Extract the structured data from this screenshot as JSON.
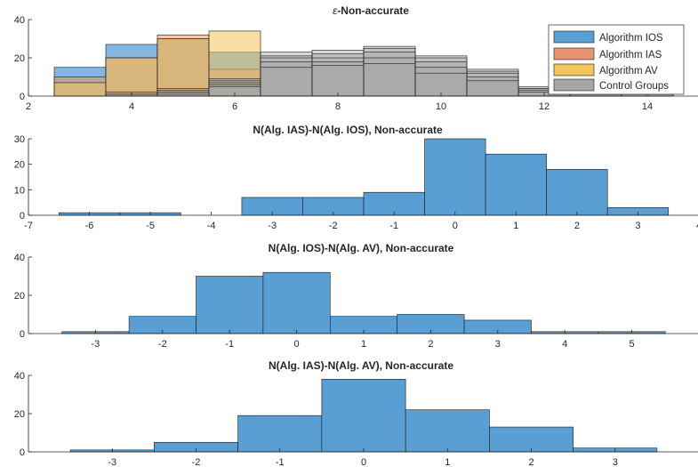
{
  "figure": {
    "colors": {
      "ios": "#5a9fd4",
      "ias": "#e8956f",
      "av": "#f2c55c",
      "ctrl": "#a6a6a6"
    }
  },
  "chart_data": [
    {
      "type": "bar",
      "subtype": "overlaid-histogram",
      "title": "ε-Non-accurate",
      "title_prefix": "ε",
      "title_suffix": "-Non-accurate",
      "xlim": [
        2,
        15
      ],
      "ylim": [
        0,
        40
      ],
      "xticks": [
        2,
        4,
        6,
        8,
        10,
        12,
        14
      ],
      "yticks": [
        0,
        20,
        40
      ],
      "legend": {
        "position": "top-right",
        "entries": [
          "Algorithm IOS",
          "Algorithm IAS",
          "Algorithm AV",
          "Control Groups"
        ]
      },
      "bin_edges": [
        2.5,
        3.5,
        4.5,
        5.5,
        6.5,
        7.5,
        8.5,
        9.5,
        10.5,
        11.5,
        12.5,
        13.5,
        14.5
      ],
      "series": [
        {
          "name": "Algorithm IOS",
          "color_key": "ios",
          "alpha": 0.75,
          "values": [
            15,
            27,
            30,
            23,
            0,
            0,
            0,
            0,
            0,
            0,
            0,
            0
          ]
        },
        {
          "name": "Algorithm IAS",
          "color_key": "ias",
          "alpha": 0.55,
          "values": [
            10,
            20,
            32,
            14,
            0,
            0,
            0,
            0,
            0,
            0,
            0,
            0
          ]
        },
        {
          "name": "Algorithm AV",
          "color_key": "av",
          "alpha": 0.55,
          "values": [
            7,
            20,
            30,
            34,
            0,
            0,
            0,
            0,
            0,
            0,
            0,
            0
          ]
        },
        {
          "name": "Control Groups",
          "color_key": "ctrl",
          "alpha": 0.45,
          "values": [
            0,
            1,
            4,
            9,
            23,
            24,
            26,
            21,
            14,
            5,
            2,
            1
          ]
        },
        {
          "name": "",
          "color_key": "ctrl",
          "alpha": 0.45,
          "values": [
            0,
            2,
            3,
            8,
            21,
            22,
            25,
            20,
            13,
            4,
            2,
            1
          ]
        },
        {
          "name": "",
          "color_key": "ctrl",
          "alpha": 0.45,
          "values": [
            0,
            1,
            2,
            7,
            20,
            20,
            23,
            18,
            12,
            4,
            1,
            1
          ]
        },
        {
          "name": "",
          "color_key": "ctrl",
          "alpha": 0.45,
          "values": [
            0,
            1,
            2,
            6,
            18,
            18,
            20,
            15,
            10,
            3,
            1,
            0
          ]
        },
        {
          "name": "",
          "color_key": "ctrl",
          "alpha": 0.45,
          "values": [
            0,
            0,
            1,
            5,
            15,
            16,
            17,
            12,
            8,
            2,
            1,
            0
          ]
        }
      ]
    },
    {
      "type": "bar",
      "subtype": "histogram",
      "title": "N(Alg. IAS)-N(Alg. IOS), Non-accurate",
      "xlim": [
        -7,
        4
      ],
      "ylim": [
        0,
        30
      ],
      "xticks": [
        -7,
        -6,
        -5,
        -4,
        -3,
        -2,
        -1,
        0,
        1,
        2,
        3,
        4
      ],
      "yticks": [
        0,
        10,
        20,
        30
      ],
      "bin_edges": [
        -6.5,
        -5.5,
        -4.5,
        -3.5,
        -2.5,
        -1.5,
        -0.5,
        0.5,
        1.5,
        2.5,
        3.5
      ],
      "series": [
        {
          "color_key": "ios",
          "alpha": 1,
          "values": [
            1,
            1,
            0,
            7,
            7,
            9,
            30,
            24,
            18,
            3
          ]
        }
      ]
    },
    {
      "type": "bar",
      "subtype": "histogram",
      "title": "N(Alg. IOS)-N(Alg. AV), Non-accurate",
      "xlim": [
        -4,
        6
      ],
      "ylim": [
        0,
        40
      ],
      "xticks": [
        -3,
        -2,
        -1,
        0,
        1,
        2,
        3,
        4,
        5
      ],
      "yticks": [
        0,
        20,
        40
      ],
      "bin_edges": [
        -3.5,
        -2.5,
        -1.5,
        -0.5,
        0.5,
        1.5,
        2.5,
        3.5,
        4.5,
        5.5
      ],
      "series": [
        {
          "color_key": "ios",
          "alpha": 1,
          "values": [
            1,
            9,
            30,
            32,
            9,
            10,
            7,
            1,
            1
          ]
        }
      ]
    },
    {
      "type": "bar",
      "subtype": "histogram",
      "title": "N(Alg. IAS)-N(Alg. AV), Non-accurate",
      "xlim": [
        -4,
        4
      ],
      "ylim": [
        0,
        40
      ],
      "xticks": [
        -3,
        -2,
        -1,
        0,
        1,
        2,
        3
      ],
      "yticks": [
        0,
        20,
        40
      ],
      "bin_edges": [
        -3.5,
        -2.5,
        -1.5,
        -0.5,
        0.5,
        1.5,
        2.5,
        3.5
      ],
      "series": [
        {
          "color_key": "ios",
          "alpha": 1,
          "values": [
            1,
            5,
            19,
            38,
            22,
            13,
            2
          ]
        }
      ]
    }
  ]
}
